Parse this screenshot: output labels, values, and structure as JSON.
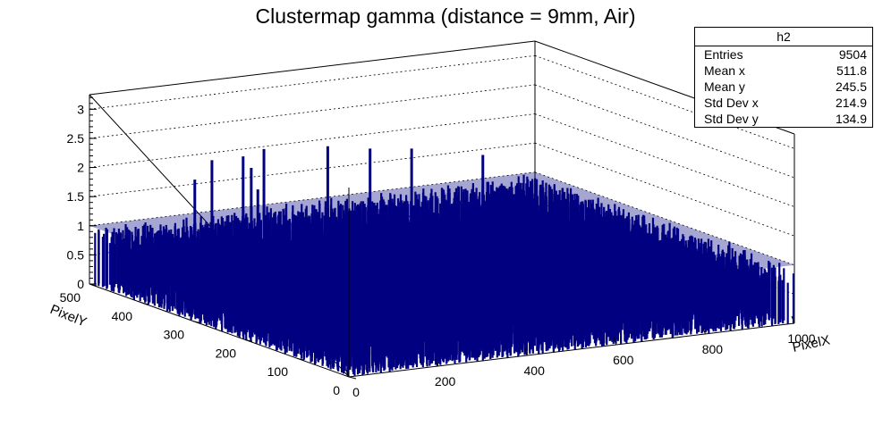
{
  "chart_data": {
    "type": "lego3d",
    "title": "Clustermap gamma (distance = 9mm, Air)",
    "xlabel": "PixelX",
    "ylabel": "PixelY",
    "xlim": [
      0,
      1000
    ],
    "ylim": [
      0,
      500
    ],
    "zlim": [
      0,
      3.25
    ],
    "x_ticks": [
      {
        "value": 0,
        "label": "0"
      },
      {
        "value": 200,
        "label": "200"
      },
      {
        "value": 400,
        "label": "400"
      },
      {
        "value": 600,
        "label": "600"
      },
      {
        "value": 800,
        "label": "800"
      },
      {
        "value": 1000,
        "label": "1000"
      }
    ],
    "y_ticks": [
      {
        "value": 0,
        "label": "0"
      },
      {
        "value": 100,
        "label": "100"
      },
      {
        "value": 200,
        "label": "200"
      },
      {
        "value": 300,
        "label": "300"
      },
      {
        "value": 400,
        "label": "400"
      },
      {
        "value": 500,
        "label": "500"
      }
    ],
    "z_ticks": [
      {
        "value": 0,
        "label": "0"
      },
      {
        "value": 0.5,
        "label": "0.5"
      },
      {
        "value": 1,
        "label": "1"
      },
      {
        "value": 1.5,
        "label": "1.5"
      },
      {
        "value": 2,
        "label": "2"
      },
      {
        "value": 2.5,
        "label": "2.5"
      },
      {
        "value": 3,
        "label": "3"
      }
    ],
    "dominant_bin_content": 1,
    "tall_bins": [
      {
        "x": 380,
        "y": 490,
        "z": 2
      },
      {
        "x": 270,
        "y": 420,
        "z": 2
      },
      {
        "x": 310,
        "y": 470,
        "z": 2
      },
      {
        "x": 180,
        "y": 330,
        "z": 2
      },
      {
        "x": 500,
        "y": 470,
        "z": 2
      },
      {
        "x": 560,
        "y": 440,
        "z": 2
      },
      {
        "x": 630,
        "y": 420,
        "z": 2
      },
      {
        "x": 720,
        "y": 360,
        "z": 2
      },
      {
        "x": 120,
        "y": 400,
        "z": 2
      },
      {
        "x": 240,
        "y": 470,
        "z": 2
      }
    ],
    "grid": true,
    "stats": {
      "title": "h2",
      "rows": [
        {
          "label": "Entries",
          "value": "9504"
        },
        {
          "label": "Mean x",
          "value": "511.8"
        },
        {
          "label": "Mean y",
          "value": "245.5"
        },
        {
          "label": "Std Dev x",
          "value": "214.9"
        },
        {
          "label": "Std Dev y",
          "value": "134.9"
        }
      ]
    },
    "colors": {
      "bars": "#000080",
      "axes": "#000000",
      "grid": "#000000"
    }
  }
}
